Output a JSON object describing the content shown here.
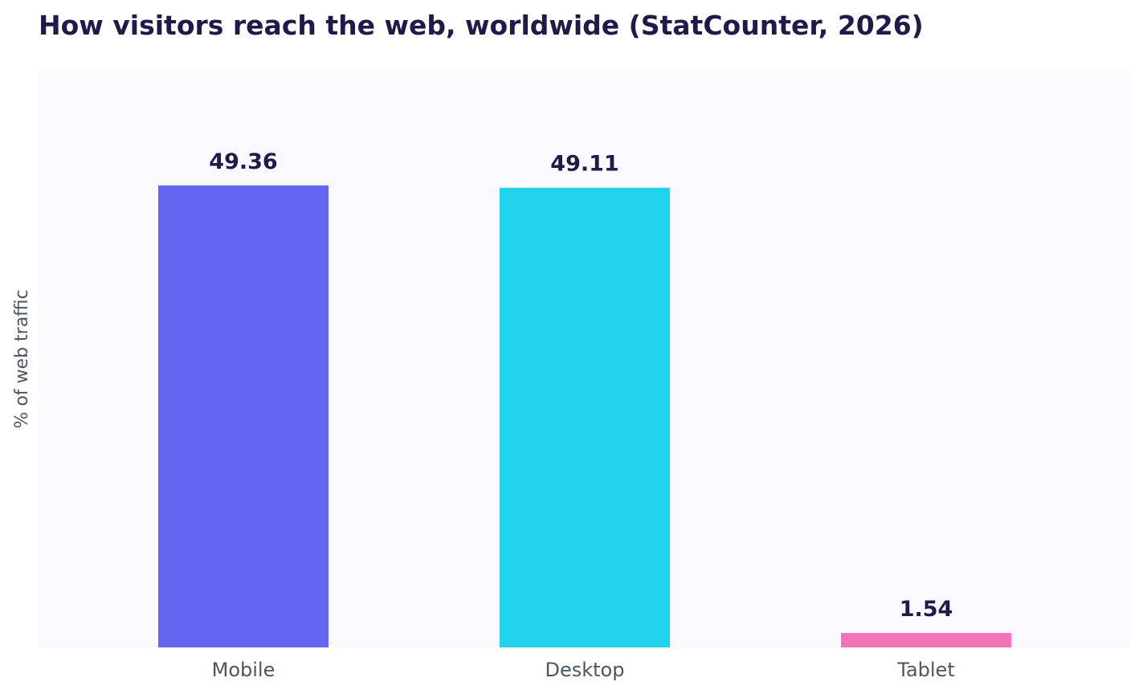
{
  "chart_data": {
    "type": "bar",
    "title": "How visitors reach the web, worldwide (StatCounter, 2026)",
    "xlabel": "",
    "ylabel": "% of web traffic",
    "categories": [
      "Mobile",
      "Desktop",
      "Tablet"
    ],
    "values": [
      49.36,
      49.11,
      1.54
    ],
    "value_labels": [
      "49.36",
      "49.11",
      "1.54"
    ],
    "colors": [
      "#6366f1",
      "#22d3ee",
      "#f472b6"
    ],
    "ylim": [
      0,
      61.7
    ],
    "grid": false,
    "legend": "none",
    "plot_background": "#f9f9ff"
  }
}
